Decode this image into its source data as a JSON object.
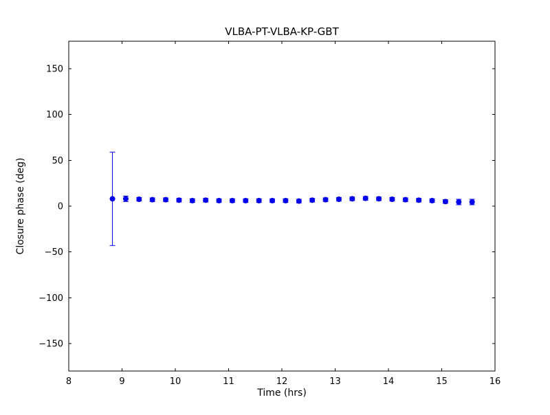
{
  "figure": {
    "background": "#ffffff",
    "axes_color": "#000000"
  },
  "chart_data": {
    "type": "scatter",
    "title": "VLBA-PT-VLBA-KP-GBT",
    "xlabel": "Time (hrs)",
    "ylabel": "Closure phase (deg)",
    "xlim": [
      8,
      16
    ],
    "ylim": [
      -180,
      180
    ],
    "grid": false,
    "legend": "none",
    "marker_color": "#0000ee",
    "xticks": {
      "values": [
        8,
        9,
        10,
        11,
        12,
        13,
        14,
        15,
        16
      ],
      "labels": [
        "8",
        "9",
        "10",
        "11",
        "12",
        "13",
        "14",
        "15",
        "16"
      ]
    },
    "yticks": {
      "values": [
        -150,
        -100,
        -50,
        0,
        50,
        100,
        150
      ],
      "labels": [
        "−150",
        "−100",
        "−50",
        "0",
        "50",
        "100",
        "150"
      ]
    },
    "series": [
      {
        "name": "closure phase vs time",
        "x": [
          8.82,
          9.07,
          9.32,
          9.57,
          9.82,
          10.07,
          10.32,
          10.57,
          10.82,
          11.07,
          11.32,
          11.57,
          11.82,
          12.07,
          12.32,
          12.57,
          12.82,
          13.07,
          13.32,
          13.57,
          13.82,
          14.07,
          14.32,
          14.57,
          14.82,
          15.07,
          15.32,
          15.57
        ],
        "y": [
          8,
          8,
          7.5,
          7,
          7,
          6.5,
          6,
          6.5,
          6,
          6,
          6,
          6,
          6,
          6,
          5.5,
          6.5,
          7,
          7.5,
          8,
          8.5,
          8,
          7.5,
          7,
          6.5,
          6,
          5,
          4.5,
          4.5
        ],
        "yerr": [
          51,
          3,
          2,
          2,
          2,
          2,
          2,
          2,
          2,
          2,
          2,
          2,
          2,
          2,
          2,
          2,
          2,
          2,
          2,
          2,
          2,
          2,
          2,
          2,
          2,
          2,
          3,
          3
        ]
      }
    ]
  }
}
